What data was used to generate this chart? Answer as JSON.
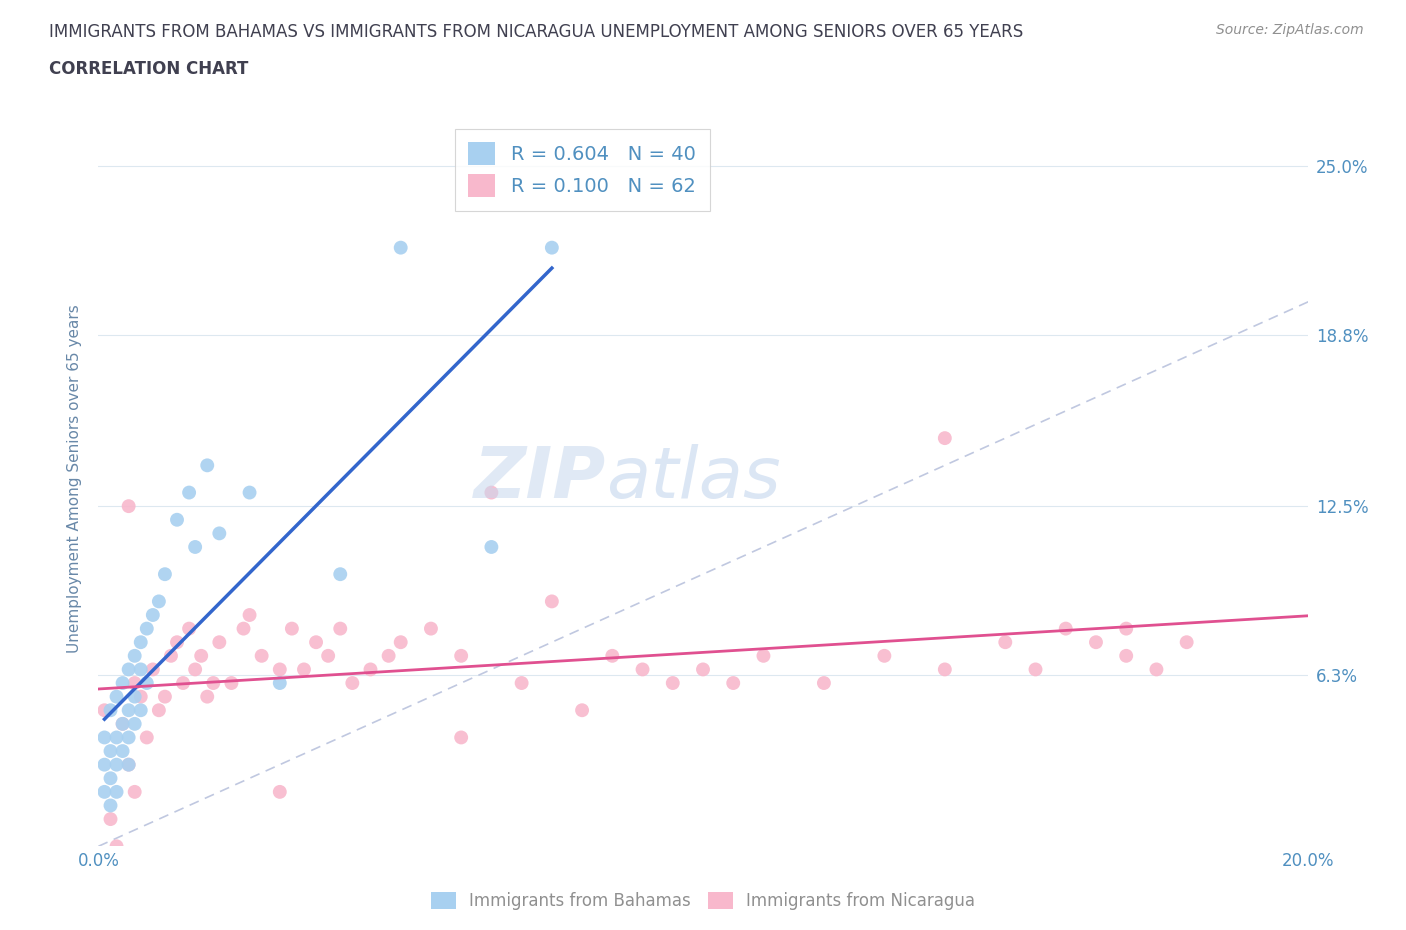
{
  "title_line1": "IMMIGRANTS FROM BAHAMAS VS IMMIGRANTS FROM NICARAGUA UNEMPLOYMENT AMONG SENIORS OVER 65 YEARS",
  "title_line2": "CORRELATION CHART",
  "source_text": "Source: ZipAtlas.com",
  "ylabel": "Unemployment Among Seniors over 65 years",
  "xlim": [
    0.0,
    0.2
  ],
  "ylim": [
    0.0,
    0.27
  ],
  "yticks": [
    0.0,
    0.063,
    0.125,
    0.188,
    0.25
  ],
  "ytick_labels": [
    "",
    "6.3%",
    "12.5%",
    "18.8%",
    "25.0%"
  ],
  "xticks": [
    0.0,
    0.05,
    0.1,
    0.15,
    0.2
  ],
  "xtick_labels": [
    "0.0%",
    "",
    "",
    "",
    "20.0%"
  ],
  "watermark_zip": "ZIP",
  "watermark_atlas": "atlas",
  "legend_r1": "R = 0.604",
  "legend_n1": "N = 40",
  "legend_r2": "R = 0.100",
  "legend_n2": "N = 62",
  "bahamas_scatter_color": "#a8d0f0",
  "nicaragua_scatter_color": "#f8b8cc",
  "regression_bahamas_color": "#3366cc",
  "regression_nicaragua_color": "#e05090",
  "diagonal_color": "#c0c8e0",
  "grid_color": "#dde8f0",
  "title_color": "#404050",
  "axis_label_color": "#6888a8",
  "tick_label_color": "#5090c0",
  "source_color": "#909090",
  "bottom_legend_color": "#909090",
  "bahamas_legend_color": "#a8d0f0",
  "nicaragua_legend_color": "#f8b8cc",
  "bottom_legend_bahamas": "Immigrants from Bahamas",
  "bottom_legend_nicaragua": "Immigrants from Nicaragua",
  "bahamas_x": [
    0.001,
    0.001,
    0.001,
    0.002,
    0.002,
    0.002,
    0.002,
    0.003,
    0.003,
    0.003,
    0.003,
    0.004,
    0.004,
    0.004,
    0.005,
    0.005,
    0.005,
    0.005,
    0.006,
    0.006,
    0.006,
    0.007,
    0.007,
    0.007,
    0.008,
    0.008,
    0.009,
    0.01,
    0.011,
    0.013,
    0.015,
    0.016,
    0.018,
    0.02,
    0.025,
    0.03,
    0.04,
    0.05,
    0.065,
    0.075
  ],
  "bahamas_y": [
    0.04,
    0.03,
    0.02,
    0.05,
    0.035,
    0.025,
    0.015,
    0.055,
    0.04,
    0.03,
    0.02,
    0.06,
    0.045,
    0.035,
    0.065,
    0.05,
    0.04,
    0.03,
    0.07,
    0.055,
    0.045,
    0.075,
    0.065,
    0.05,
    0.08,
    0.06,
    0.085,
    0.09,
    0.1,
    0.12,
    0.13,
    0.11,
    0.14,
    0.115,
    0.13,
    0.06,
    0.1,
    0.22,
    0.11,
    0.22
  ],
  "nicaragua_x": [
    0.001,
    0.002,
    0.003,
    0.004,
    0.005,
    0.006,
    0.006,
    0.007,
    0.008,
    0.009,
    0.01,
    0.011,
    0.012,
    0.013,
    0.014,
    0.015,
    0.016,
    0.017,
    0.018,
    0.019,
    0.02,
    0.022,
    0.024,
    0.025,
    0.027,
    0.03,
    0.032,
    0.034,
    0.036,
    0.038,
    0.04,
    0.042,
    0.045,
    0.048,
    0.05,
    0.055,
    0.06,
    0.065,
    0.07,
    0.075,
    0.08,
    0.085,
    0.09,
    0.095,
    0.1,
    0.105,
    0.11,
    0.12,
    0.13,
    0.14,
    0.15,
    0.155,
    0.16,
    0.165,
    0.17,
    0.175,
    0.18,
    0.14,
    0.06,
    0.03,
    0.005,
    0.17
  ],
  "nicaragua_y": [
    0.05,
    0.01,
    0.0,
    0.045,
    0.03,
    0.06,
    0.02,
    0.055,
    0.04,
    0.065,
    0.05,
    0.055,
    0.07,
    0.075,
    0.06,
    0.08,
    0.065,
    0.07,
    0.055,
    0.06,
    0.075,
    0.06,
    0.08,
    0.085,
    0.07,
    0.065,
    0.08,
    0.065,
    0.075,
    0.07,
    0.08,
    0.06,
    0.065,
    0.07,
    0.075,
    0.08,
    0.07,
    0.13,
    0.06,
    0.09,
    0.05,
    0.07,
    0.065,
    0.06,
    0.065,
    0.06,
    0.07,
    0.06,
    0.07,
    0.065,
    0.075,
    0.065,
    0.08,
    0.075,
    0.07,
    0.065,
    0.075,
    0.15,
    0.04,
    0.02,
    0.125,
    0.08
  ]
}
